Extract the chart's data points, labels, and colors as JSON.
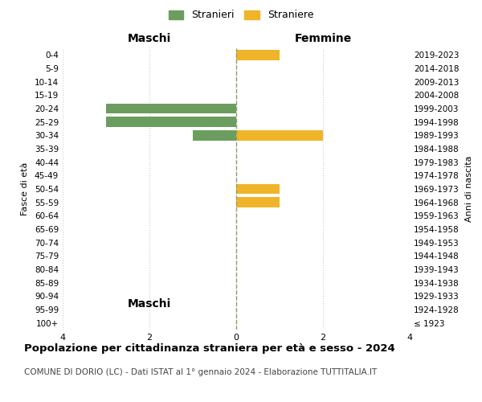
{
  "age_groups": [
    "100+",
    "95-99",
    "90-94",
    "85-89",
    "80-84",
    "75-79",
    "70-74",
    "65-69",
    "60-64",
    "55-59",
    "50-54",
    "45-49",
    "40-44",
    "35-39",
    "30-34",
    "25-29",
    "20-24",
    "15-19",
    "10-14",
    "5-9",
    "0-4"
  ],
  "birth_years": [
    "≤ 1923",
    "1924-1928",
    "1929-1933",
    "1934-1938",
    "1939-1943",
    "1944-1948",
    "1949-1953",
    "1954-1958",
    "1959-1963",
    "1964-1968",
    "1969-1973",
    "1974-1978",
    "1979-1983",
    "1984-1988",
    "1989-1993",
    "1994-1998",
    "1999-2003",
    "2004-2008",
    "2009-2013",
    "2014-2018",
    "2019-2023"
  ],
  "males": [
    0,
    0,
    0,
    0,
    0,
    0,
    0,
    0,
    0,
    0,
    0,
    0,
    0,
    0,
    1,
    3,
    3,
    0,
    0,
    0,
    0
  ],
  "females": [
    0,
    0,
    0,
    0,
    0,
    0,
    0,
    0,
    0,
    1,
    1,
    0,
    0,
    0,
    2,
    0,
    0,
    0,
    0,
    0,
    1
  ],
  "male_color": "#6b9e5e",
  "female_color": "#f0b429",
  "male_label": "Stranieri",
  "female_label": "Straniere",
  "xlabel_left": "Maschi",
  "xlabel_right": "Femmine",
  "ylabel_left": "Fasce di età",
  "ylabel_right": "Anni di nascita",
  "xlim": 4,
  "title": "Popolazione per cittadinanza straniera per età e sesso - 2024",
  "subtitle": "COMUNE DI DORIO (LC) - Dati ISTAT al 1° gennaio 2024 - Elaborazione TUTTITALIA.IT",
  "grid_color": "#cccccc",
  "background_color": "#ffffff",
  "center_line_color": "#999966"
}
